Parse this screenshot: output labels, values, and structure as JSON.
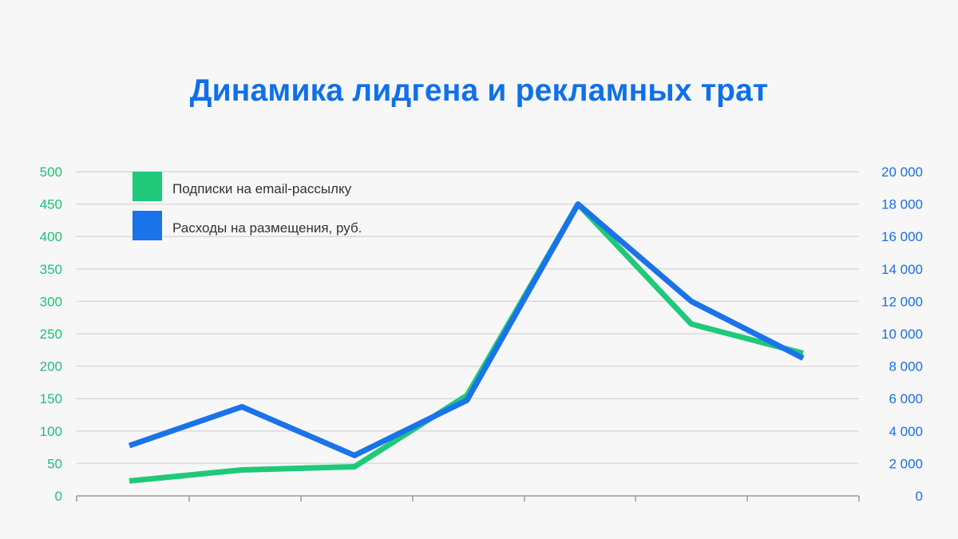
{
  "chart_data": {
    "type": "line",
    "title": "Динамика лидгена и рекламных трат",
    "x_count": 7,
    "y_left": {
      "ylim": [
        0,
        500
      ],
      "ticks": [
        "0",
        "50",
        "100",
        "150",
        "200",
        "250",
        "300",
        "350",
        "400",
        "450",
        "500"
      ],
      "tick_values": [
        0,
        50,
        100,
        150,
        200,
        250,
        300,
        350,
        400,
        450,
        500
      ],
      "color": "#1fbf76"
    },
    "y_right": {
      "ylim": [
        0,
        20000
      ],
      "ticks": [
        "0",
        "2 000",
        "4 000",
        "6 000",
        "8 000",
        "10 000",
        "12 000",
        "14 000",
        "16 000",
        "18 000",
        "20 000"
      ],
      "tick_values": [
        0,
        2000,
        4000,
        6000,
        8000,
        10000,
        12000,
        14000,
        16000,
        18000,
        20000
      ],
      "color": "#1a6fe0"
    },
    "series": [
      {
        "name": "Подписки на email-рассылку",
        "axis": "left",
        "color": "#1fc97a",
        "values": [
          23,
          40,
          45,
          155,
          450,
          265,
          220
        ]
      },
      {
        "name": "Расходы на размещения, руб.",
        "axis": "right",
        "color": "#1a73e8",
        "values": [
          3100,
          5500,
          2500,
          5900,
          18000,
          12000,
          8500
        ]
      }
    ],
    "grid": true,
    "legend_position": "top-left"
  }
}
